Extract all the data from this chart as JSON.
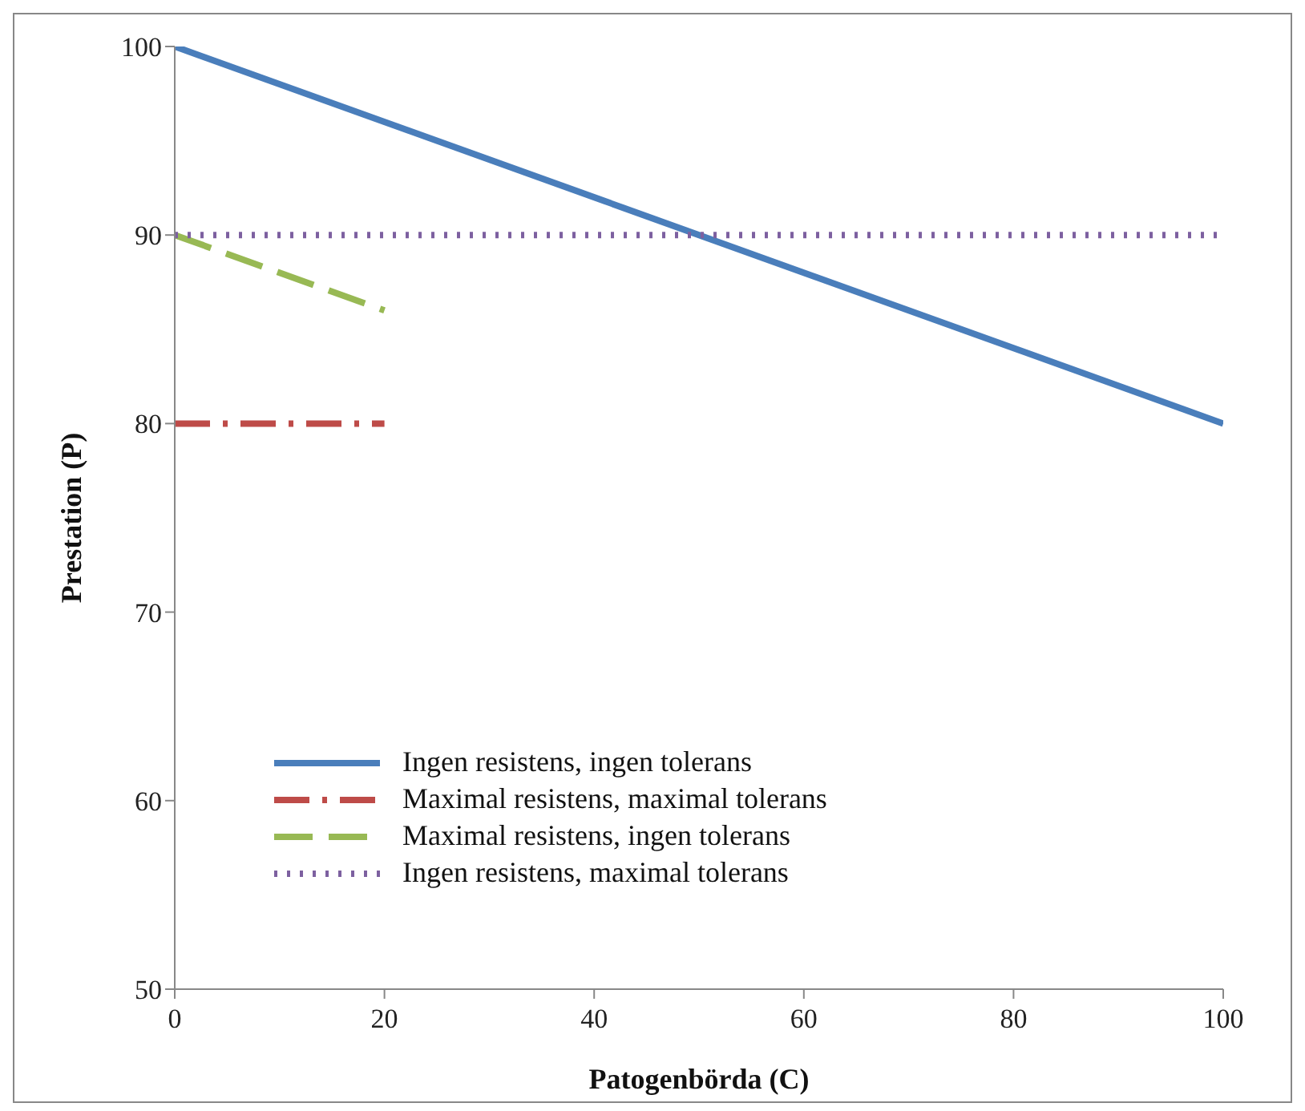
{
  "chart_data": {
    "type": "line",
    "xlabel": "Patogenbörda (C)",
    "ylabel": "Prestation (P)",
    "xlim": [
      0,
      100
    ],
    "xticks": [
      0,
      20,
      40,
      60,
      80,
      100
    ],
    "ylim": [
      50,
      100
    ],
    "yticks": [
      50,
      60,
      70,
      80,
      90,
      100
    ],
    "grid": false,
    "legend": "bottom left",
    "series": [
      {
        "name": "Ingen resistens, ingen tolerans",
        "color": "#4a7ebb",
        "line_style": "solid",
        "x": [
          0,
          100
        ],
        "values": [
          100,
          80
        ]
      },
      {
        "name": "Maximal resistens, maximal tolerans",
        "color": "#be4b48",
        "line_style": "dashed",
        "x": [
          0,
          20
        ],
        "values": [
          80,
          80
        ]
      },
      {
        "name": "Maximal resistens, ingen tolerans",
        "color": "#98b954",
        "line_style": "dashed",
        "x": [
          0,
          20
        ],
        "values": [
          90,
          86
        ]
      },
      {
        "name": "Ingen resistens, maximal tolerans",
        "color": "#7d60a0",
        "line_style": "dotted",
        "x": [
          0,
          100
        ],
        "values": [
          90,
          90
        ]
      }
    ]
  }
}
